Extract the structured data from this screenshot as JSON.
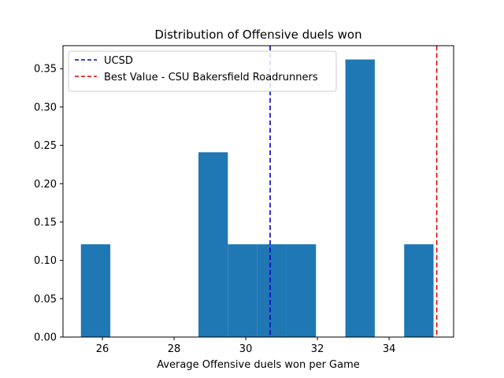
{
  "chart_data": {
    "type": "bar",
    "title": "Distribution of Offensive duels won",
    "xlabel": "Average Offensive duels won per Game",
    "ylabel": "",
    "xlim": [
      24.9,
      35.8
    ],
    "ylim": [
      0,
      0.38
    ],
    "xticks": [
      26,
      28,
      30,
      32,
      34
    ],
    "yticks": [
      0.0,
      0.05,
      0.1,
      0.15,
      0.2,
      0.25,
      0.3,
      0.35
    ],
    "ytick_labels": [
      "0.00",
      "0.05",
      "0.10",
      "0.15",
      "0.20",
      "0.25",
      "0.30",
      "0.35"
    ],
    "xtick_labels": [
      "26",
      "28",
      "30",
      "32",
      "34"
    ],
    "bin_edges": [
      25.4,
      26.2,
      27.0,
      27.8,
      28.6,
      29.4,
      30.2,
      31.0,
      31.8,
      32.6,
      33.4,
      34.2,
      35.0,
      35.35
    ],
    "bins": [
      {
        "x0": 25.4,
        "x1": 26.22,
        "value": 0.121
      },
      {
        "x0": 28.68,
        "x1": 29.5,
        "value": 0.241
      },
      {
        "x0": 29.5,
        "x1": 30.32,
        "value": 0.121
      },
      {
        "x0": 30.32,
        "x1": 31.14,
        "value": 0.121
      },
      {
        "x0": 31.14,
        "x1": 31.96,
        "value": 0.121
      },
      {
        "x0": 32.78,
        "x1": 33.6,
        "value": 0.362
      },
      {
        "x0": 34.42,
        "x1": 35.24,
        "value": 0.121
      }
    ],
    "bar_color": "#1f77b4",
    "reference_lines": [
      {
        "name": "UCSD",
        "x": 30.68,
        "color": "#0000cc",
        "style": "dashed"
      },
      {
        "name": "Best Value - CSU Bakersfield Roadrunners",
        "x": 35.33,
        "color": "#dd0000",
        "style": "dashed"
      }
    ],
    "legend_position": "top-left",
    "grid": false
  }
}
